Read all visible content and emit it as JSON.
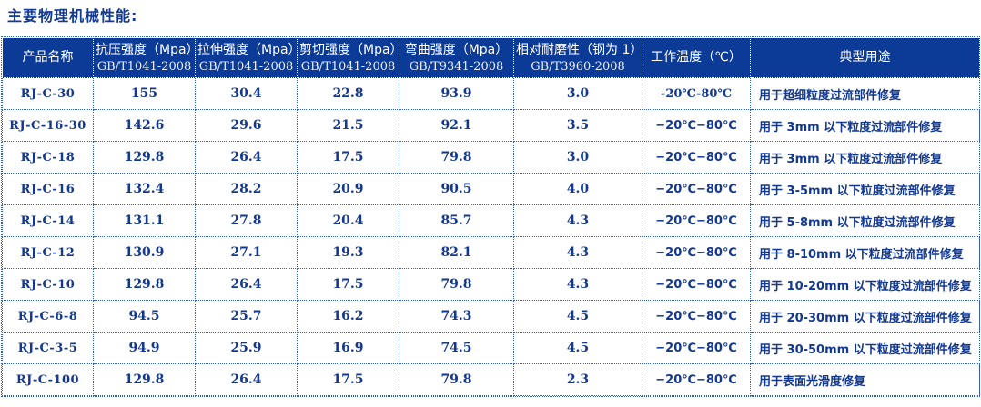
{
  "title": "主要物理机械性能:",
  "colors": {
    "header_bg": "#0b3b96",
    "body_text": "#12388f",
    "grid_border": "#3a5ba9",
    "header_text": "#ffffff"
  },
  "table": {
    "columns": [
      {
        "field": "name",
        "label": "产品名称",
        "standard": ""
      },
      {
        "field": "compressive",
        "label": "抗压强度（Mpa）",
        "standard": "GB/T1041-2008"
      },
      {
        "field": "tensile",
        "label": "拉伸强度（Mpa）",
        "standard": "GB/T1041-2008"
      },
      {
        "field": "shear",
        "label": "剪切强度（Mpa）",
        "standard": "GB/T1041-2008"
      },
      {
        "field": "bending",
        "label": "弯曲强度（Mpa）",
        "standard": "GB/T9341-2008"
      },
      {
        "field": "wear",
        "label": "相对耐磨性（钢为 1）",
        "standard": "GB/T3960-2008"
      },
      {
        "field": "temp",
        "label": "工作温度（℃）",
        "standard": ""
      },
      {
        "field": "use",
        "label": "典型用途",
        "standard": ""
      }
    ],
    "rows": [
      {
        "name": "RJ-C-30",
        "compressive": "155",
        "tensile": "30.4",
        "shear": "22.8",
        "bending": "93.9",
        "wear": "3.0",
        "temp": "-20℃-80℃",
        "use": "用于超细粒度过流部件修复"
      },
      {
        "name": "RJ-C-16-30",
        "compressive": "142.6",
        "tensile": "29.6",
        "shear": "21.5",
        "bending": "92.1",
        "wear": "3.5",
        "temp": "−20℃−80℃",
        "use": "用于 3mm 以下粒度过流部件修复"
      },
      {
        "name": "RJ-C-18",
        "compressive": "129.8",
        "tensile": "26.4",
        "shear": "17.5",
        "bending": "79.8",
        "wear": "3.0",
        "temp": "−20℃−80℃",
        "use": "用于 3mm 以下粒度过流部件修复"
      },
      {
        "name": "RJ-C-16",
        "compressive": "132.4",
        "tensile": "28.2",
        "shear": "20.9",
        "bending": "90.5",
        "wear": "4.0",
        "temp": "−20℃−80℃",
        "use": "用于 3-5mm 以下粒度过流部件修复"
      },
      {
        "name": "RJ-C-14",
        "compressive": "131.1",
        "tensile": "27.8",
        "shear": "20.4",
        "bending": "85.7",
        "wear": "4.3",
        "temp": "−20℃−80℃",
        "use": "用于 5-8mm 以下粒度过流部件修复"
      },
      {
        "name": "RJ-C-12",
        "compressive": "130.9",
        "tensile": "27.1",
        "shear": "19.3",
        "bending": "82.1",
        "wear": "4.3",
        "temp": "−20℃−80℃",
        "use": "用于 8-10mm 以下粒度过流部件修复"
      },
      {
        "name": "RJ-C-10",
        "compressive": "129.8",
        "tensile": "26.4",
        "shear": "17.5",
        "bending": "79.8",
        "wear": "4.3",
        "temp": "−20℃−80℃",
        "use": "用于 10-20mm 以下粒度过流部件修复"
      },
      {
        "name": "RJ-C-6-8",
        "compressive": "94.5",
        "tensile": "25.7",
        "shear": "16.2",
        "bending": "74.3",
        "wear": "4.5",
        "temp": "−20℃−80℃",
        "use": "用于 20-30mm 以下粒度过流部件修复"
      },
      {
        "name": "RJ-C-3-5",
        "compressive": "94.9",
        "tensile": "25.9",
        "shear": "16.9",
        "bending": "74.5",
        "wear": "4.5",
        "temp": "−20℃−80℃",
        "use": "用于 30-50mm 以下粒度过流部件修复"
      },
      {
        "name": "RJ-C-100",
        "compressive": "129.8",
        "tensile": "26.4",
        "shear": "17.5",
        "bending": "79.8",
        "wear": "2.3",
        "temp": "−20℃−80℃",
        "use": "用于表面光滑度修复"
      }
    ]
  }
}
